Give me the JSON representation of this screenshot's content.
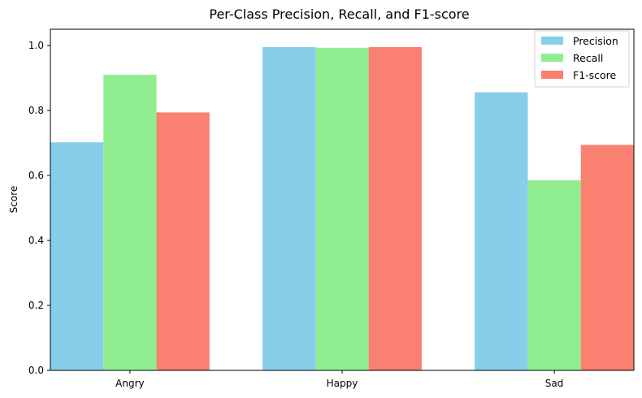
{
  "chart_data": {
    "type": "bar",
    "title": "Per-Class Precision, Recall, and F1-score",
    "xlabel": "",
    "ylabel": "Score",
    "categories": [
      "Angry",
      "Happy",
      "Sad"
    ],
    "series": [
      {
        "name": "Precision",
        "values": [
          0.702,
          0.995,
          0.856
        ],
        "color": "#87ceeb"
      },
      {
        "name": "Recall",
        "values": [
          0.91,
          0.993,
          0.585
        ],
        "color": "#90ee90"
      },
      {
        "name": "F1-score",
        "values": [
          0.794,
          0.995,
          0.694
        ],
        "color": "#fa8072"
      }
    ],
    "ylim": [
      0,
      1.05
    ],
    "yticks": [
      "0.0",
      "0.2",
      "0.4",
      "0.6",
      "0.8",
      "1.0"
    ],
    "grid": false,
    "legend_position": "top-right"
  }
}
